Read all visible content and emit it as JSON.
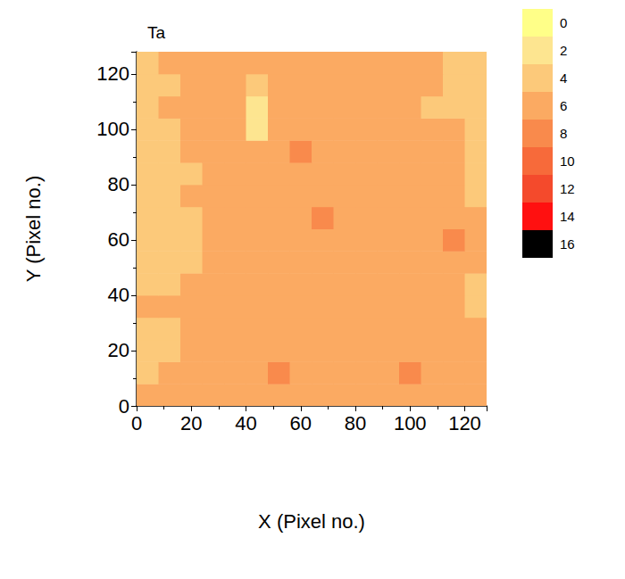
{
  "chart_data": {
    "type": "heatmap",
    "title": "Ta",
    "x_label": "X (Pixel no.)",
    "y_label": "Y (Pixel no.)",
    "xlim": [
      0,
      128
    ],
    "ylim": [
      0,
      128
    ],
    "xticks": [
      0,
      20,
      40,
      60,
      80,
      100,
      120
    ],
    "yticks": [
      0,
      20,
      40,
      60,
      80,
      100,
      120
    ],
    "x_edges": [
      0,
      8,
      16,
      24,
      32,
      40,
      48,
      56,
      64,
      72,
      80,
      88,
      96,
      104,
      112,
      120,
      128
    ],
    "y_edges": [
      0,
      8,
      16,
      24,
      32,
      40,
      48,
      56,
      64,
      72,
      80,
      88,
      96,
      104,
      112,
      120,
      128
    ],
    "cells": [
      [
        6,
        7,
        6,
        7,
        6,
        7,
        7,
        6,
        7,
        6,
        7,
        6,
        7,
        7,
        6,
        7
      ],
      [
        5,
        6,
        7,
        6,
        6,
        7,
        8,
        6,
        7,
        6,
        6,
        7,
        8,
        7,
        6,
        6
      ],
      [
        4,
        4,
        6,
        7,
        6,
        6,
        6,
        6,
        6,
        7,
        7,
        6,
        7,
        7,
        6,
        6
      ],
      [
        4,
        5,
        6,
        7,
        7,
        6,
        6,
        6,
        6,
        6,
        7,
        6,
        6,
        6,
        6,
        6
      ],
      [
        6,
        6,
        7,
        6,
        7,
        6,
        6,
        6,
        6,
        6,
        7,
        6,
        6,
        7,
        6,
        5
      ],
      [
        5,
        5,
        6,
        6,
        6,
        6,
        6,
        6,
        6,
        6,
        7,
        7,
        6,
        6,
        6,
        5
      ],
      [
        5,
        5,
        5,
        6,
        6,
        6,
        6,
        7,
        6,
        6,
        7,
        6,
        6,
        7,
        7,
        6
      ],
      [
        4,
        4,
        5,
        6,
        6,
        6,
        6,
        7,
        7,
        6,
        6,
        7,
        7,
        7,
        8,
        6
      ],
      [
        5,
        5,
        5,
        6,
        6,
        6,
        7,
        7,
        8,
        7,
        6,
        6,
        7,
        6,
        6,
        6
      ],
      [
        5,
        5,
        6,
        6,
        6,
        6,
        6,
        6,
        6,
        6,
        7,
        6,
        6,
        6,
        6,
        5
      ],
      [
        5,
        5,
        5,
        6,
        6,
        6,
        6,
        7,
        7,
        6,
        6,
        6,
        6,
        6,
        6,
        5
      ],
      [
        5,
        5,
        6,
        6,
        6,
        6,
        7,
        8,
        7,
        6,
        6,
        6,
        6,
        6,
        6,
        5
      ],
      [
        5,
        5,
        6,
        6,
        7,
        2,
        6,
        7,
        6,
        6,
        6,
        6,
        6,
        6,
        6,
        5
      ],
      [
        5,
        6,
        6,
        6,
        6,
        2,
        6,
        6,
        6,
        6,
        6,
        6,
        6,
        5,
        5,
        5
      ],
      [
        5,
        5,
        6,
        7,
        7,
        5,
        6,
        6,
        6,
        7,
        7,
        6,
        6,
        6,
        5,
        5
      ],
      [
        5,
        6,
        6,
        6,
        6,
        6,
        6,
        6,
        6,
        6,
        6,
        6,
        6,
        6,
        5,
        5
      ]
    ],
    "colorbar": {
      "range": [
        0,
        18
      ],
      "ticks": [
        0,
        2,
        4,
        6,
        8,
        10,
        12,
        14,
        16
      ],
      "colors": [
        "#ffff88",
        "#fde590",
        "#fcc97a",
        "#fbaa62",
        "#f98a4c",
        "#f76a3a",
        "#f44a2c",
        "#ff1010",
        "#000000"
      ]
    }
  }
}
